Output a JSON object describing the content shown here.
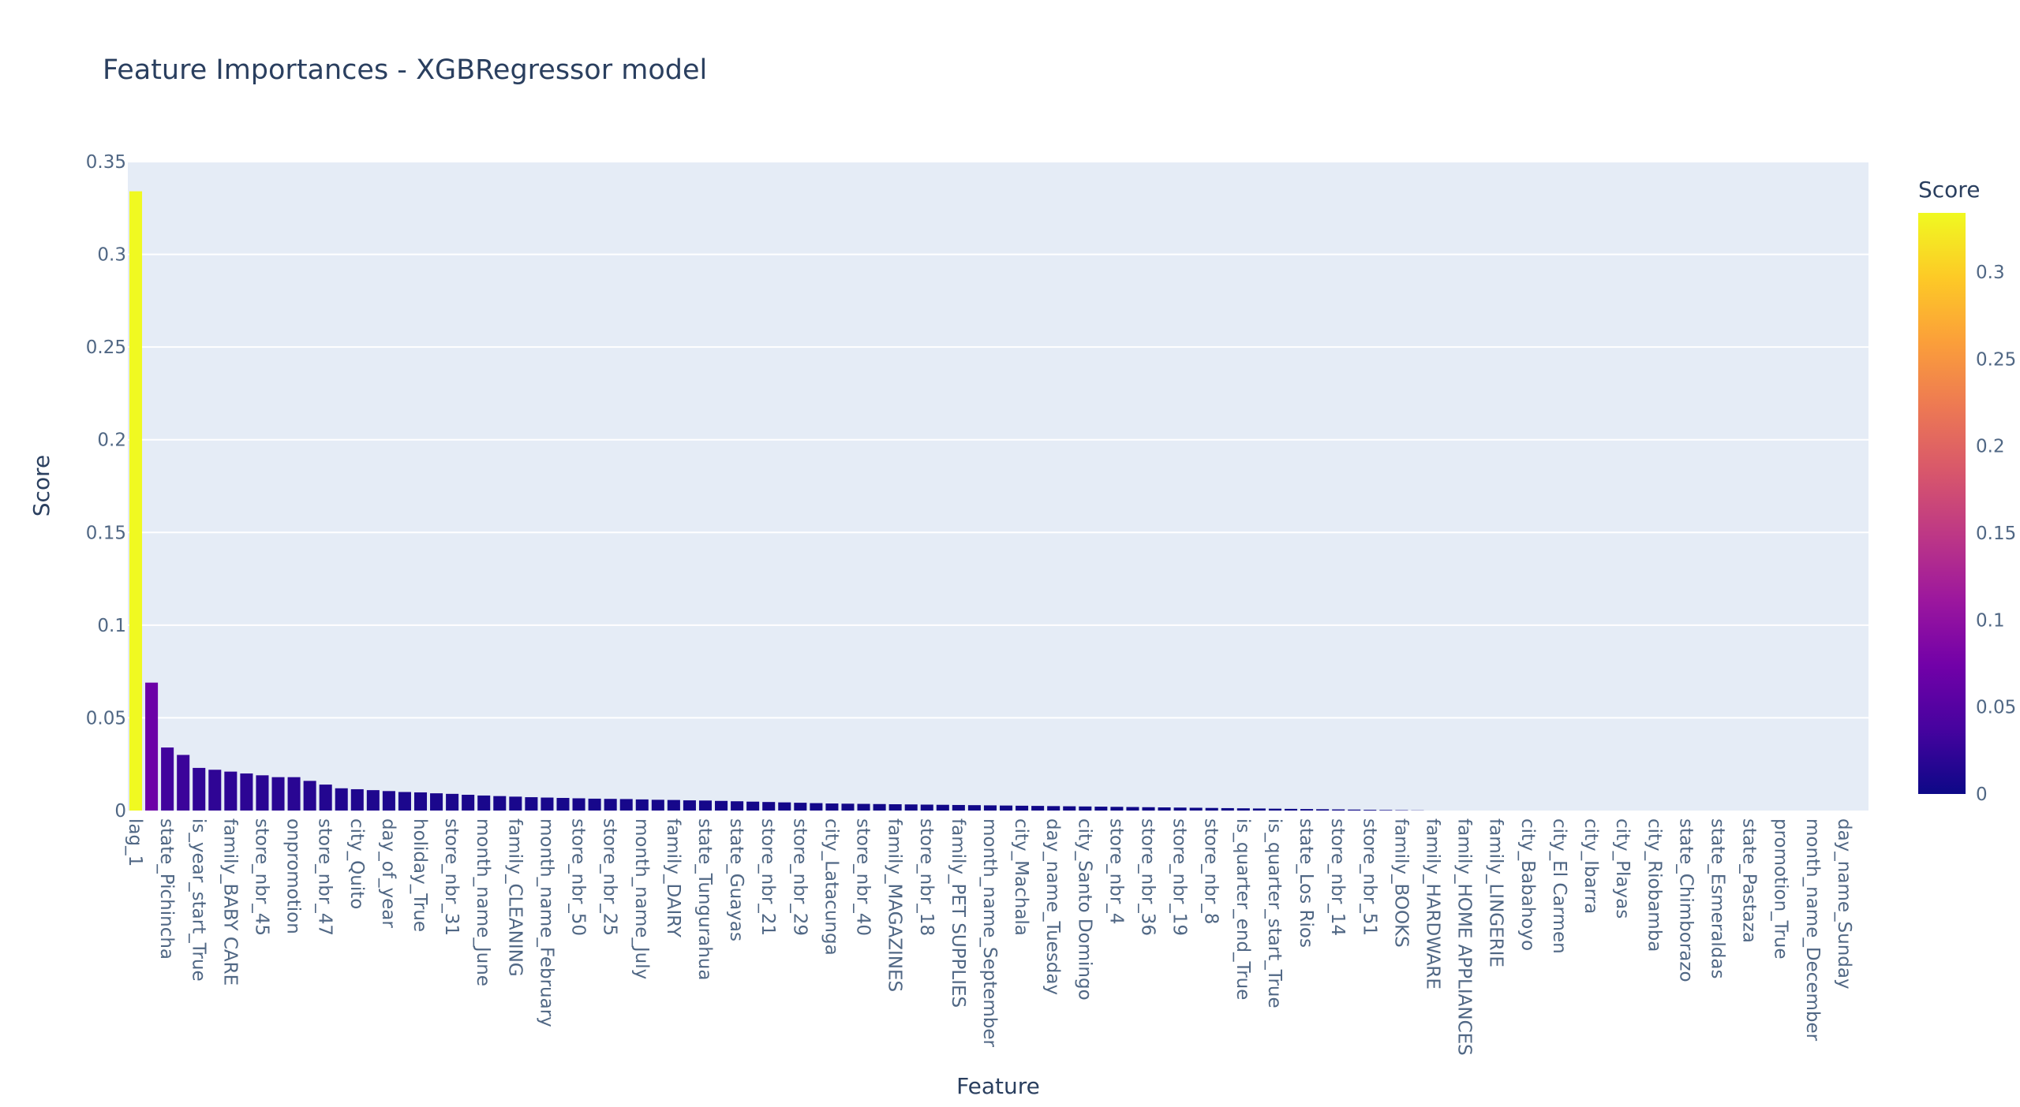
{
  "chart_data": {
    "type": "bar",
    "title": "Feature Importances - XGBRegressor model",
    "xlabel": "Feature",
    "ylabel": "Score",
    "ylim": [
      0,
      0.35
    ],
    "yticks": [
      0,
      0.05,
      0.1,
      0.15,
      0.2,
      0.25,
      0.3,
      0.35
    ],
    "ytick_labels": [
      "0",
      "0.05",
      "0.1",
      "0.15",
      "0.2",
      "0.25",
      "0.3",
      "0.35"
    ],
    "grid": true,
    "legend": "none",
    "colorbar": {
      "title": "Score",
      "range": [
        0,
        0.334
      ],
      "ticks": [
        0,
        0.05,
        0.1,
        0.15,
        0.2,
        0.25,
        0.3
      ],
      "tick_labels": [
        "0",
        "0.05",
        "0.1",
        "0.15",
        "0.2",
        "0.25",
        "0.3"
      ],
      "colorscale": [
        "#0d0887",
        "#46039f",
        "#7201a8",
        "#9c179e",
        "#bd3786",
        "#d8576b",
        "#ed7953",
        "#fb9f3a",
        "#fdca26",
        "#f0f921"
      ]
    },
    "n_bars": 110,
    "labeled_categories": [
      "lag_1",
      "state_Pichincha",
      "is_year_start_True",
      "family_BABY CARE",
      "store_nbr_45",
      "onpromotion",
      "store_nbr_47",
      "city_Quito",
      "day_of_year",
      "holiday_True",
      "store_nbr_31",
      "month_name_June",
      "family_CLEANING",
      "month_name_February",
      "store_nbr_50",
      "store_nbr_25",
      "month_name_July",
      "family_DAIRY",
      "state_Tungurahua",
      "state_Guayas",
      "store_nbr_21",
      "store_nbr_29",
      "city_Latacunga",
      "store_nbr_40",
      "family_MAGAZINES",
      "store_nbr_18",
      "family_PET SUPPLIES",
      "month_name_September",
      "city_Machala",
      "day_name_Tuesday",
      "city_Santo Domingo",
      "store_nbr_4",
      "store_nbr_36",
      "store_nbr_19",
      "store_nbr_8",
      "is_quarter_end_True",
      "is_quarter_start_True",
      "state_Los Rios",
      "store_nbr_14",
      "store_nbr_51",
      "family_BOOKS",
      "family_HARDWARE",
      "family_HOME APPLIANCES",
      "family_LINGERIE",
      "city_Babahoyo",
      "city_El Carmen",
      "city_Ibarra",
      "city_Playas",
      "city_Riobamba",
      "state_Chimborazo",
      "state_Esmeraldas",
      "state_Pastaza",
      "promotion_True",
      "month_name_December",
      "day_name_Sunday"
    ],
    "values": [
      0.334,
      0.069,
      0.034,
      0.03,
      0.023,
      0.022,
      0.021,
      0.02,
      0.019,
      0.018,
      0.018,
      0.016,
      0.014,
      0.012,
      0.0115,
      0.011,
      0.0105,
      0.01,
      0.0098,
      0.0093,
      0.009,
      0.0085,
      0.0081,
      0.0078,
      0.0075,
      0.0072,
      0.007,
      0.0068,
      0.0066,
      0.0064,
      0.0063,
      0.0062,
      0.006,
      0.0058,
      0.0057,
      0.0055,
      0.0054,
      0.0052,
      0.005,
      0.0048,
      0.0046,
      0.0044,
      0.0042,
      0.004,
      0.0038,
      0.0037,
      0.0036,
      0.0035,
      0.0034,
      0.0033,
      0.0032,
      0.0031,
      0.003,
      0.0029,
      0.0028,
      0.0027,
      0.0026,
      0.0025,
      0.0024,
      0.0023,
      0.0022,
      0.0021,
      0.002,
      0.0019,
      0.0018,
      0.0017,
      0.0016,
      0.0015,
      0.0014,
      0.0013,
      0.0012,
      0.0011,
      0.001,
      0.0009,
      0.0008,
      0.0007,
      0.0006,
      0.0005,
      0.0004,
      0.0003,
      0.0002,
      0.0001,
      0,
      0,
      0,
      0,
      0,
      0,
      0,
      0,
      0,
      0,
      0,
      0,
      0,
      0,
      0,
      0,
      0,
      0,
      0,
      0,
      0,
      0,
      0,
      0,
      0,
      0,
      0,
      0
    ]
  }
}
